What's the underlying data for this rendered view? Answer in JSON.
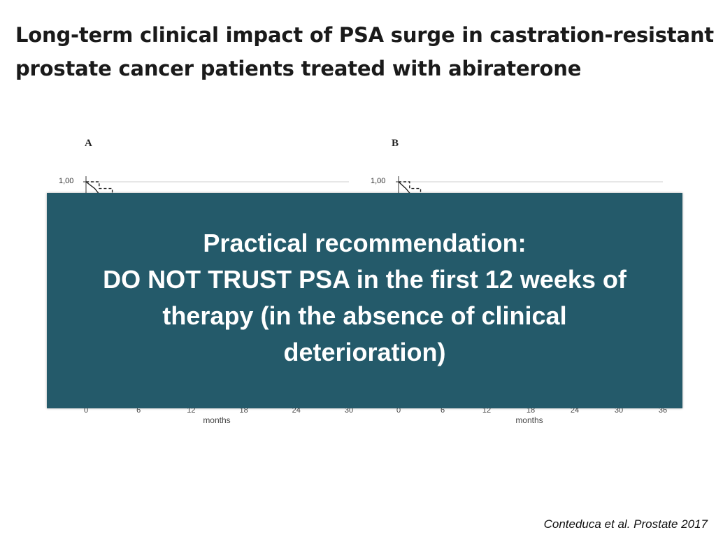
{
  "slide": {
    "title_line1": "Long-term clinical impact of PSA surge in castration-resistant",
    "title_line2": "prostate cancer patients treated with abiraterone",
    "citation": "Conteduca et al. Prostate 2017"
  },
  "overlay": {
    "line1": "Practical recommendation:",
    "line2": "DO NOT TRUST PSA in the first 12 weeks of",
    "line3": "therapy (in the absence of clinical",
    "line4": "deterioration)",
    "background_color": "#245a6a",
    "text_color": "#ffffff"
  },
  "chart_data": [
    {
      "type": "line",
      "panel_label": "A",
      "xlabel": "months",
      "x_ticks": [
        "0",
        "6",
        "12",
        "18",
        "24",
        "30"
      ],
      "y_ticks_visible": [
        "1,00"
      ],
      "xlim": [
        0,
        30
      ],
      "ylim": [
        0,
        1
      ],
      "series": [
        {
          "style": "solid",
          "x": [
            0,
            1,
            2,
            3
          ],
          "y": [
            1.0,
            0.97,
            0.92,
            0.9
          ]
        },
        {
          "style": "dashed",
          "x": [
            0,
            1.5,
            1.5,
            3,
            3,
            4
          ],
          "y": [
            1.0,
            1.0,
            0.97,
            0.97,
            0.93,
            0.93
          ]
        }
      ]
    },
    {
      "type": "line",
      "panel_label": "B",
      "xlabel": "months",
      "x_ticks": [
        "0",
        "6",
        "12",
        "18",
        "24",
        "30",
        "36"
      ],
      "y_ticks_visible": [
        "1,00"
      ],
      "xlim": [
        0,
        36
      ],
      "ylim": [
        0,
        1
      ],
      "series": [
        {
          "style": "solid",
          "x": [
            0,
            1,
            2,
            3
          ],
          "y": [
            1.0,
            0.97,
            0.93,
            0.91
          ]
        },
        {
          "style": "dashed",
          "x": [
            0,
            1.5,
            1.5,
            3,
            3,
            4
          ],
          "y": [
            1.0,
            1.0,
            0.97,
            0.97,
            0.94,
            0.94
          ]
        }
      ]
    }
  ]
}
